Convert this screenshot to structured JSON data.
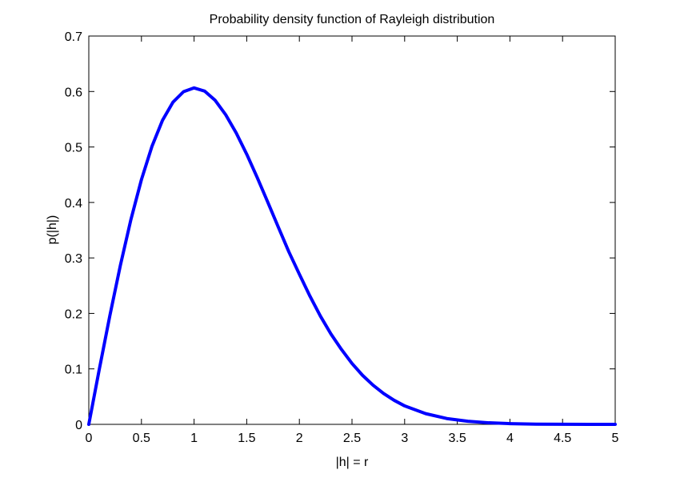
{
  "chart_data": {
    "type": "line",
    "title": "Probability density function of Rayleigh distribution",
    "xlabel": "|h| = r",
    "ylabel": "p(|h|)",
    "xlim": [
      0,
      5
    ],
    "ylim": [
      0,
      0.7
    ],
    "xticks": [
      "0",
      "0.5",
      "1",
      "1.5",
      "2",
      "2.5",
      "3",
      "3.5",
      "4",
      "4.5",
      "5"
    ],
    "yticks": [
      "0",
      "0.1",
      "0.2",
      "0.3",
      "0.4",
      "0.5",
      "0.6",
      "0.7"
    ],
    "grid": false,
    "series": [
      {
        "color": "#0000ff",
        "x": [
          0,
          0.1,
          0.2,
          0.3,
          0.4,
          0.5,
          0.6,
          0.7,
          0.8,
          0.9,
          1.0,
          1.1,
          1.2,
          1.3,
          1.4,
          1.5,
          1.6,
          1.7,
          1.8,
          1.9,
          2.0,
          2.1,
          2.2,
          2.3,
          2.4,
          2.5,
          2.6,
          2.7,
          2.8,
          2.9,
          3.0,
          3.2,
          3.4,
          3.6,
          3.8,
          4.0,
          4.25,
          4.5,
          4.75,
          5.0
        ],
        "y": [
          0,
          0.0995,
          0.196,
          0.2867,
          0.3692,
          0.4412,
          0.5012,
          0.548,
          0.5809,
          0.5997,
          0.6065,
          0.6007,
          0.5841,
          0.5582,
          0.5254,
          0.487,
          0.4448,
          0.4005,
          0.3556,
          0.3111,
          0.2707,
          0.2313,
          0.1951,
          0.1629,
          0.135,
          0.1098,
          0.0884,
          0.0706,
          0.0557,
          0.0434,
          0.0333,
          0.0193,
          0.0105,
          0.0056,
          0.0028,
          0.0013,
          0.0004,
          0.0001,
          3e-05,
          1e-05
        ]
      }
    ]
  }
}
